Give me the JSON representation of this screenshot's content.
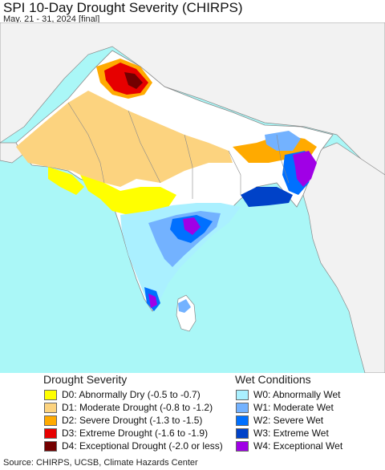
{
  "title": "SPI 10-Day Drought Severity (CHIRPS)",
  "subtitle": "May. 21 - 31, 2024 [final]",
  "legend": {
    "drought_title": "Drought Severity",
    "drought_items": [
      {
        "label": "D0: Abnormally Dry (-0.5 to -0.7)",
        "color": "#ffff00"
      },
      {
        "label": "D1: Moderate Drought (-0.8 to -1.2)",
        "color": "#fcd37f"
      },
      {
        "label": "D2: Severe Drought (-1.3 to -1.5)",
        "color": "#ffaa00"
      },
      {
        "label": "D3: Extreme Drought (-1.6 to -1.9)",
        "color": "#e60000"
      },
      {
        "label": "D4: Exceptional Drought (-2.0 or less)",
        "color": "#730000"
      }
    ],
    "wet_title": "Wet Conditions",
    "wet_items": [
      {
        "label": "W0: Abnormally Wet",
        "color": "#aaf0ff"
      },
      {
        "label": "W1: Moderate Wet",
        "color": "#73b2ff"
      },
      {
        "label": "W2: Severe Wet",
        "color": "#0070ff"
      },
      {
        "label": "W3: Extreme Wet",
        "color": "#0042c8"
      },
      {
        "label": "W4: Exceptional Wet",
        "color": "#a000e6"
      }
    ]
  },
  "source": "Source: CHIRPS, UCSB, Climate Hazards Center",
  "colors": {
    "ocean": "#aaf7f7",
    "outside_land": "#f2f2f2",
    "normal_land": "#ffffff",
    "border": "#8a8a8a"
  }
}
